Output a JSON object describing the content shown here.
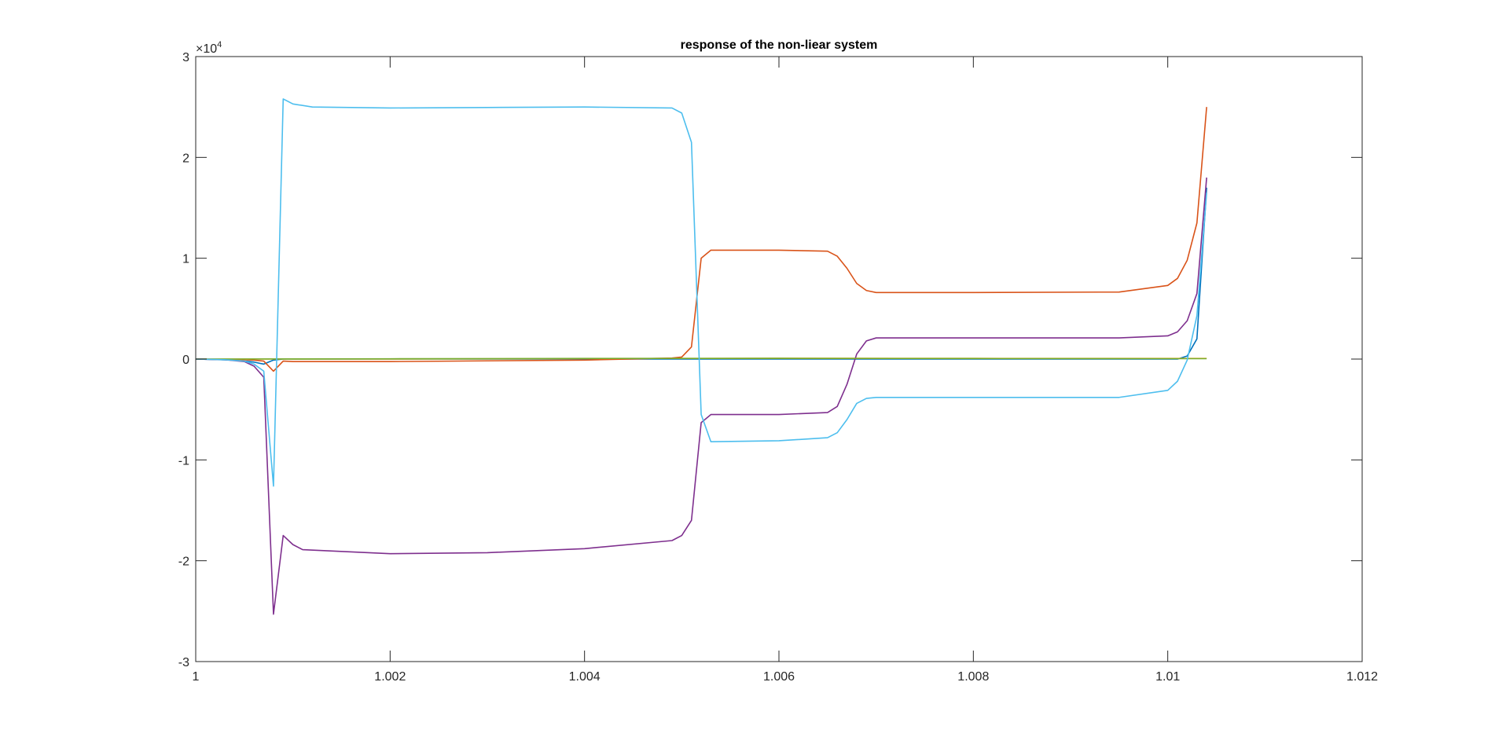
{
  "chart_data": {
    "type": "line",
    "title": "response of the non-liear system",
    "xlabel": "",
    "ylabel": "",
    "xlim": [
      1,
      1.012
    ],
    "ylim": [
      -30000,
      30000
    ],
    "x_ticks": [
      1,
      1.002,
      1.004,
      1.006,
      1.008,
      1.01,
      1.012
    ],
    "x_tick_labels": [
      "1",
      "1.002",
      "1.004",
      "1.006",
      "1.008",
      "1.01",
      "1.012"
    ],
    "y_ticks": [
      -30000,
      -20000,
      -10000,
      0,
      10000,
      20000,
      30000
    ],
    "y_tick_labels": [
      "-3",
      "-2",
      "-1",
      "0",
      "1",
      "2",
      "3"
    ],
    "y_exponent_label": "×10",
    "y_exponent_power": "4",
    "grid": false,
    "series": [
      {
        "color": "#0072BD",
        "points": [
          [
            1,
            0
          ],
          [
            1.0004,
            -100
          ],
          [
            1.0006,
            -300
          ],
          [
            1.0007,
            -500
          ],
          [
            1.0008,
            -100
          ],
          [
            1.0009,
            0
          ],
          [
            1.005,
            0
          ],
          [
            1.0101,
            0
          ],
          [
            1.0102,
            300
          ],
          [
            1.0103,
            2000
          ],
          [
            1.0104,
            17000
          ]
        ]
      },
      {
        "color": "#D95319",
        "points": [
          [
            1,
            0
          ],
          [
            1.0004,
            -30
          ],
          [
            1.0006,
            -100
          ],
          [
            1.0007,
            -200
          ],
          [
            1.0008,
            -1200
          ],
          [
            1.0009,
            -200
          ],
          [
            1.001,
            -250
          ],
          [
            1.002,
            -250
          ],
          [
            1.004,
            -100
          ],
          [
            1.0049,
            100
          ],
          [
            1.005,
            200
          ],
          [
            1.0051,
            1200
          ],
          [
            1.0052,
            10000
          ],
          [
            1.0053,
            10800
          ],
          [
            1.006,
            10800
          ],
          [
            1.0065,
            10700
          ],
          [
            1.0066,
            10200
          ],
          [
            1.0067,
            9000
          ],
          [
            1.0068,
            7500
          ],
          [
            1.0069,
            6800
          ],
          [
            1.007,
            6600
          ],
          [
            1.008,
            6600
          ],
          [
            1.0095,
            6650
          ],
          [
            1.01,
            7300
          ],
          [
            1.0101,
            8000
          ],
          [
            1.0102,
            9800
          ],
          [
            1.0103,
            13500
          ],
          [
            1.0104,
            25000
          ]
        ]
      },
      {
        "color": "#EDB120",
        "points": [
          [
            1,
            0
          ],
          [
            1.002,
            0
          ],
          [
            1.004,
            50
          ],
          [
            1.006,
            80
          ],
          [
            1.008,
            70
          ],
          [
            1.01,
            60
          ],
          [
            1.0104,
            60
          ]
        ]
      },
      {
        "color": "#7E2F8E",
        "points": [
          [
            1,
            0
          ],
          [
            1.0003,
            -60
          ],
          [
            1.0005,
            -250
          ],
          [
            1.0006,
            -700
          ],
          [
            1.0007,
            -1800
          ],
          [
            1.0008,
            -25300
          ],
          [
            1.0009,
            -17500
          ],
          [
            1.001,
            -18400
          ],
          [
            1.0011,
            -18900
          ],
          [
            1.002,
            -19300
          ],
          [
            1.003,
            -19200
          ],
          [
            1.004,
            -18800
          ],
          [
            1.0049,
            -18000
          ],
          [
            1.005,
            -17500
          ],
          [
            1.0051,
            -16000
          ],
          [
            1.0052,
            -6300
          ],
          [
            1.0053,
            -5500
          ],
          [
            1.006,
            -5500
          ],
          [
            1.0065,
            -5300
          ],
          [
            1.0066,
            -4700
          ],
          [
            1.0067,
            -2500
          ],
          [
            1.0068,
            500
          ],
          [
            1.0069,
            1800
          ],
          [
            1.007,
            2100
          ],
          [
            1.008,
            2100
          ],
          [
            1.0095,
            2100
          ],
          [
            1.01,
            2300
          ],
          [
            1.0101,
            2700
          ],
          [
            1.0102,
            3800
          ],
          [
            1.0103,
            6500
          ],
          [
            1.0104,
            18000
          ]
        ]
      },
      {
        "color": "#77AC30",
        "points": [
          [
            1,
            0
          ],
          [
            1.002,
            30
          ],
          [
            1.004,
            60
          ],
          [
            1.006,
            70
          ],
          [
            1.008,
            50
          ],
          [
            1.01,
            40
          ],
          [
            1.0104,
            40
          ]
        ]
      },
      {
        "color": "#4DBEEE",
        "points": [
          [
            1,
            0
          ],
          [
            1.0003,
            -60
          ],
          [
            1.0005,
            -200
          ],
          [
            1.0006,
            -500
          ],
          [
            1.0007,
            -1200
          ],
          [
            1.0008,
            -12600
          ],
          [
            1.0009,
            25800
          ],
          [
            1.001,
            25300
          ],
          [
            1.0012,
            25000
          ],
          [
            1.002,
            24900
          ],
          [
            1.003,
            24950
          ],
          [
            1.004,
            25000
          ],
          [
            1.0049,
            24900
          ],
          [
            1.005,
            24400
          ],
          [
            1.0051,
            21500
          ],
          [
            1.0052,
            -5500
          ],
          [
            1.0053,
            -8200
          ],
          [
            1.006,
            -8100
          ],
          [
            1.0065,
            -7800
          ],
          [
            1.0066,
            -7300
          ],
          [
            1.0067,
            -6000
          ],
          [
            1.0068,
            -4400
          ],
          [
            1.0069,
            -3900
          ],
          [
            1.007,
            -3800
          ],
          [
            1.008,
            -3800
          ],
          [
            1.0095,
            -3800
          ],
          [
            1.01,
            -3100
          ],
          [
            1.0101,
            -2200
          ],
          [
            1.0102,
            -100
          ],
          [
            1.0103,
            4300
          ],
          [
            1.0104,
            16500
          ]
        ]
      }
    ]
  }
}
